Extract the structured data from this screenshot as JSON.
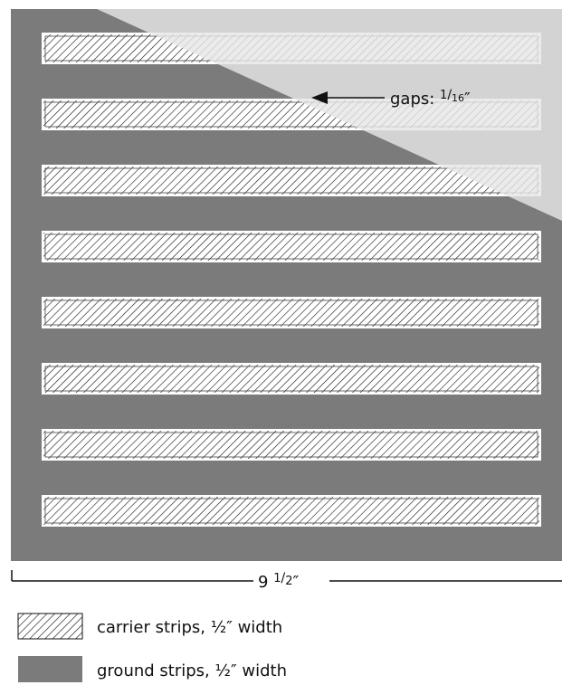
{
  "diagram": {
    "gap_label_prefix": "gaps: ",
    "gap_label_numerator": "1",
    "gap_label_denominator": "16",
    "gap_label_suffix": "″",
    "dimension_whole": "9 ",
    "dimension_numerator": "1",
    "dimension_denominator": "2",
    "dimension_suffix": "″"
  },
  "legend": {
    "carrier_label": "carrier strips, ½″ width",
    "ground_label": "ground strips,  ½″ width"
  },
  "colors": {
    "ground": "#7b7b7b",
    "overlay": "#e6e6e6",
    "strip_outline": "#ffffff",
    "hatch_stroke": "#111111"
  },
  "strips": {
    "count": 8
  }
}
